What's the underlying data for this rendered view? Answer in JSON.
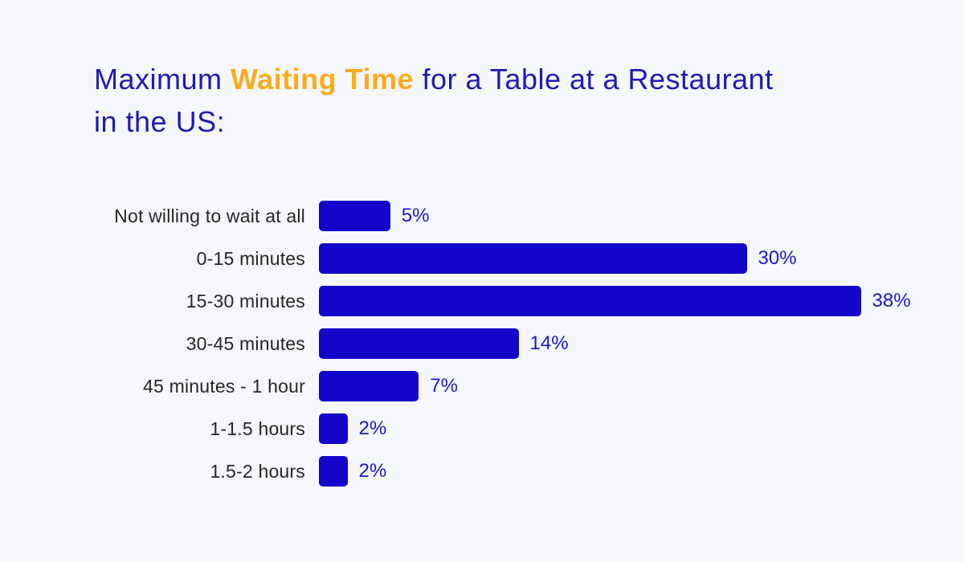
{
  "title": {
    "line1_prefix": "Maximum ",
    "line1_highlight": "Waiting Time",
    "line1_suffix": " for a Table at a Restaurant",
    "line2": "in the US:"
  },
  "chart_data": {
    "type": "bar",
    "orientation": "horizontal",
    "title": "Maximum Waiting Time for a Table at a Restaurant in the US:",
    "categories": [
      "Not willing to wait at all",
      "0-15 minutes",
      "15-30 minutes",
      "30-45 minutes",
      "45 minutes - 1 hour",
      "1-1.5 hours",
      "1.5-2 hours"
    ],
    "values": [
      5,
      30,
      38,
      14,
      7,
      2,
      2
    ],
    "value_labels": [
      "5%",
      "30%",
      "38%",
      "14%",
      "7%",
      "2%",
      "2%"
    ],
    "unit": "%",
    "xlim": [
      0,
      40
    ],
    "grid": false,
    "legend": false,
    "value_label_position": "right-of-bar",
    "colors": {
      "background": "#F6F7FA",
      "bar": "#1106C9",
      "value_label": "#1D17C9",
      "category_label": "#262626",
      "title_blue": "#1F1AB2",
      "title_highlight_orange": "#FBAB1B"
    }
  }
}
